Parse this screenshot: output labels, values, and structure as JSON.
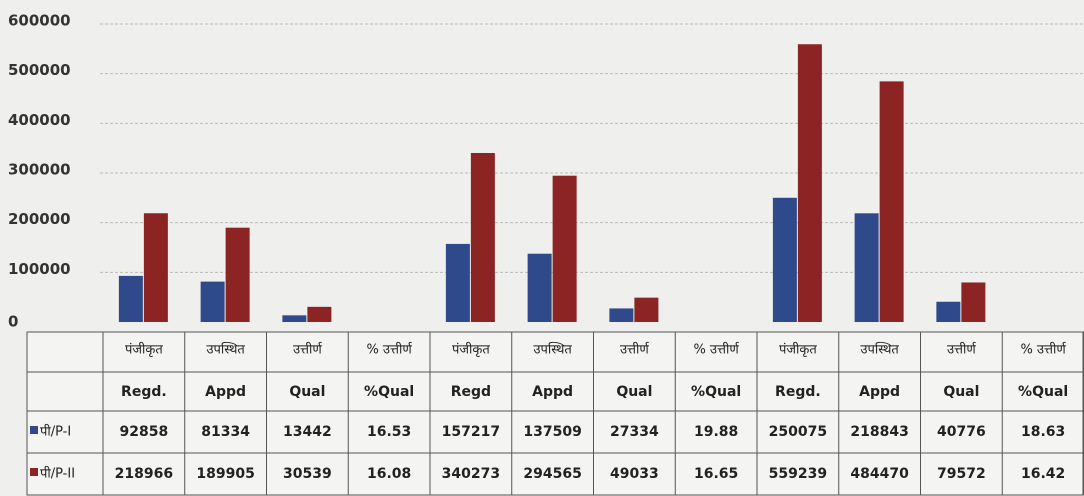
{
  "chart_data": {
    "type": "bar",
    "categories": [
      "पंजीकृत",
      "उपस्थित",
      "उत्तीर्ण",
      "% उत्तीर्ण",
      "पंजीकृत",
      "उपस्थित",
      "उत्तीर्ण",
      "% उत्तीर्ण",
      "पंजीकृत",
      "उपस्थित",
      "उत्तीर्ण",
      "% उत्तीर्ण"
    ],
    "categories_en": [
      "Regd.",
      "Appd",
      "Qual",
      "%Qual",
      "Regd",
      "Appd",
      "Qual",
      "%Qual",
      "Regd.",
      "Appd",
      "Qual",
      "%Qual"
    ],
    "series": [
      {
        "name": "पी/P-I",
        "color": "#2e4a8a",
        "values": [
          92858,
          81334,
          13442,
          16.53,
          157217,
          137509,
          27334,
          19.88,
          250075,
          218843,
          40776,
          18.63
        ]
      },
      {
        "name": "पी/P-II",
        "color": "#8c2424",
        "values": [
          218966,
          189905,
          30539,
          16.08,
          340273,
          294565,
          49033,
          16.65,
          559239,
          484470,
          79572,
          16.42
        ]
      }
    ],
    "ylim": [
      0,
      600000
    ],
    "yticks": [
      0,
      100000,
      200000,
      300000,
      400000,
      500000,
      600000
    ],
    "grid": true
  }
}
